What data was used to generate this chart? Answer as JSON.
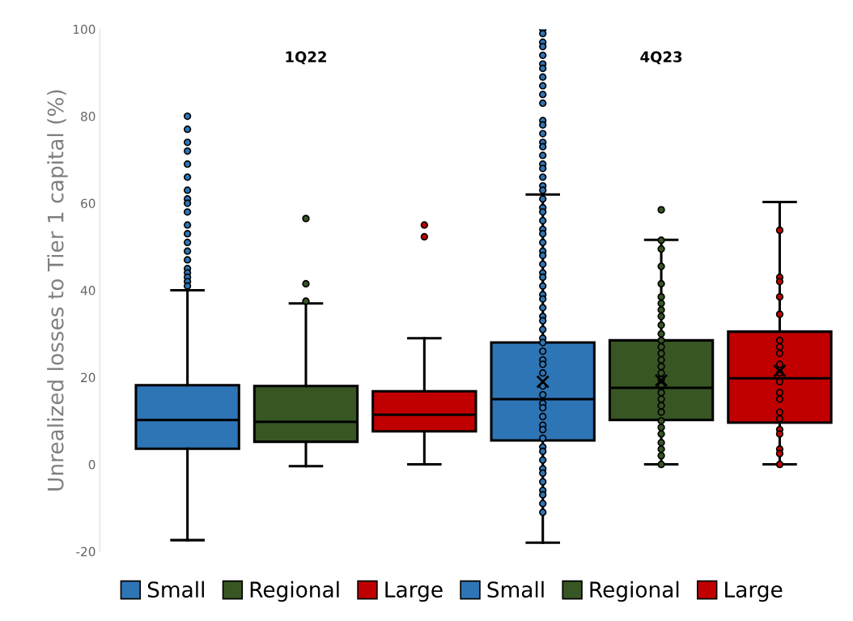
{
  "chart_data": {
    "type": "box",
    "ylabel": "Unrealized losses to Tier 1 capital (%)",
    "categories": [
      "1Q22",
      "4Q23"
    ],
    "ylim": [
      -20,
      100
    ],
    "yticks": [
      -20,
      0,
      20,
      40,
      60,
      80,
      100
    ],
    "grid": false,
    "legend": "bottom",
    "series": [
      {
        "name": "Small",
        "color": "#2e75b6",
        "boxes": [
          {
            "low": -17.4,
            "q1": 3.6,
            "median": 10.2,
            "q3": 18.2,
            "high": 40,
            "outliers": [
              80,
              77,
              74,
              72,
              69,
              66,
              63,
              61,
              60,
              58,
              55,
              53,
              51,
              49,
              47,
              45,
              44,
              43,
              42,
              41
            ]
          },
          {
            "low": -18,
            "q1": 5.5,
            "median": 15,
            "q3": 28,
            "high": 62,
            "mean": 19,
            "outliers": [
              100,
              99,
              97,
              96,
              94,
              92,
              91,
              89,
              87,
              85,
              83,
              79,
              78,
              76,
              74,
              73,
              71,
              69,
              68,
              66,
              64,
              63,
              61,
              59,
              58,
              56,
              54,
              53,
              51,
              49,
              48,
              46,
              44,
              43,
              41,
              39,
              38,
              36,
              34,
              33,
              31,
              29,
              28,
              26,
              24,
              23,
              21,
              18,
              16,
              14,
              13,
              11,
              9,
              8,
              6,
              4,
              3,
              1,
              -1,
              -2,
              -4,
              -6,
              -7,
              -9,
              -11
            ]
          }
        ]
      },
      {
        "name": "Regional",
        "color": "#375623",
        "boxes": [
          {
            "low": -0.4,
            "q1": 5.2,
            "median": 9.8,
            "q3": 18,
            "high": 37,
            "outliers": [
              56.5,
              41.5,
              37.5
            ]
          },
          {
            "low": 0,
            "q1": 10.2,
            "median": 17.6,
            "q3": 28.5,
            "high": 51.6,
            "mean": 19.3,
            "outliers": [
              58.5,
              51.5,
              49.5,
              45.5,
              41.5,
              38.5,
              37,
              35.5,
              34,
              32,
              30,
              28.5,
              27,
              25.5,
              24,
              22.5,
              21,
              19.5,
              18,
              16.5,
              15,
              13.5,
              12,
              10,
              8.5,
              7,
              5,
              3.5,
              2,
              0
            ]
          }
        ]
      },
      {
        "name": "Large",
        "color": "#c00000",
        "boxes": [
          {
            "low": 0,
            "q1": 7.6,
            "median": 11.4,
            "q3": 16.8,
            "high": 29,
            "outliers": [
              55,
              52.3
            ]
          },
          {
            "low": 0,
            "q1": 9.6,
            "median": 19.8,
            "q3": 30.5,
            "high": 60.3,
            "mean": 21.5,
            "outliers": [
              53.8,
              43,
              42,
              38.5,
              34.5,
              28.5,
              27,
              25.5,
              23,
              21,
              19,
              16.5,
              15,
              12,
              10.5,
              8,
              7,
              3.5,
              2.5,
              0
            ]
          }
        ]
      }
    ]
  }
}
